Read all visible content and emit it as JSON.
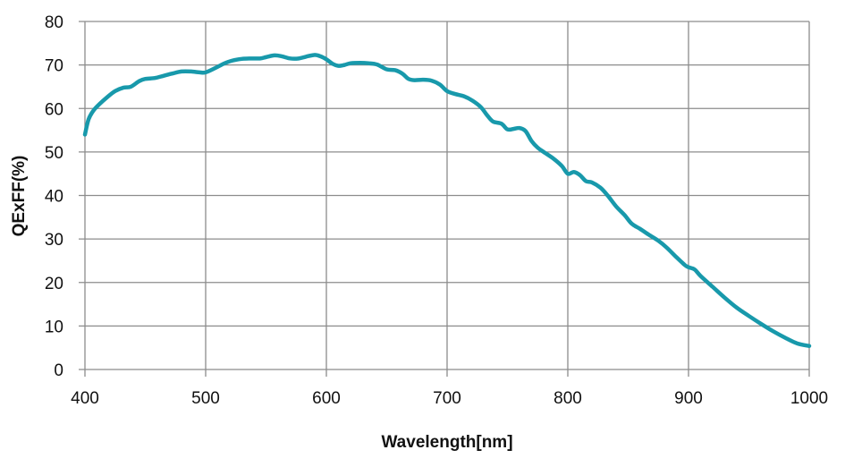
{
  "chart_data": {
    "type": "line",
    "xlabel": "Wavelength[nm]",
    "ylabel": "QExFF(%)",
    "xlim": [
      400,
      1000
    ],
    "ylim": [
      0,
      80
    ],
    "x_ticks": [
      "400",
      "500",
      "600",
      "700",
      "800",
      "900",
      "1000"
    ],
    "y_ticks": [
      "0",
      "10",
      "20",
      "30",
      "40",
      "50",
      "60",
      "70",
      "80"
    ],
    "grid": true,
    "colors": {
      "series": "#1899ab",
      "grid": "#8c8c8c",
      "text": "#111111"
    },
    "series": [
      {
        "x": [
          400,
          403,
          407,
          412,
          418,
          425,
          432,
          438,
          445,
          450,
          458,
          465,
          472,
          480,
          488,
          495,
          500,
          508,
          515,
          522,
          530,
          537,
          545,
          550,
          557,
          563,
          570,
          577,
          583,
          590,
          595,
          600,
          605,
          610,
          615,
          620,
          628,
          635,
          642,
          650,
          657,
          663,
          668,
          673,
          680,
          687,
          694,
          700,
          707,
          714,
          721,
          728,
          733,
          738,
          745,
          750,
          755,
          760,
          765,
          770,
          775,
          780,
          788,
          795,
          800,
          805,
          810,
          815,
          820,
          827,
          833,
          840,
          847,
          853,
          860,
          867,
          875,
          882,
          890,
          897,
          900,
          905,
          910,
          920,
          930,
          940,
          950,
          960,
          970,
          980,
          990,
          1000
        ],
        "y": [
          54.0,
          57.5,
          59.5,
          61.0,
          62.5,
          64.0,
          64.8,
          65.0,
          66.3,
          66.8,
          67.0,
          67.5,
          68.0,
          68.5,
          68.5,
          68.3,
          68.3,
          69.3,
          70.3,
          71.0,
          71.4,
          71.5,
          71.5,
          71.8,
          72.2,
          72.0,
          71.5,
          71.5,
          71.9,
          72.3,
          72.0,
          71.3,
          70.3,
          69.8,
          70.0,
          70.4,
          70.5,
          70.4,
          70.1,
          69.0,
          68.8,
          68.0,
          66.8,
          66.5,
          66.6,
          66.4,
          65.5,
          64.0,
          63.3,
          62.8,
          61.8,
          60.3,
          58.5,
          57.0,
          56.5,
          55.2,
          55.3,
          55.5,
          54.8,
          52.5,
          51.0,
          50.0,
          48.5,
          46.8,
          45.0,
          45.4,
          44.7,
          43.3,
          43.0,
          41.8,
          40.0,
          37.5,
          35.5,
          33.5,
          32.3,
          31.0,
          29.6,
          28.0,
          25.8,
          24.0,
          23.5,
          23.0,
          21.5,
          19.0,
          16.5,
          14.2,
          12.3,
          10.5,
          8.8,
          7.3,
          6.0,
          5.4
        ]
      }
    ]
  }
}
